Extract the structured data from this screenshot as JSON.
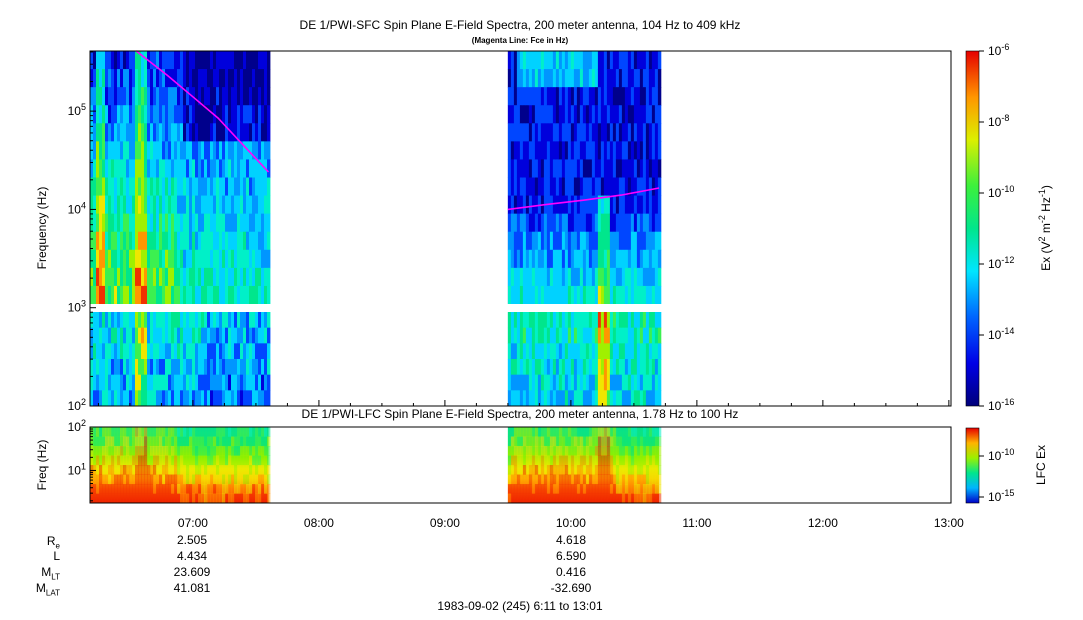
{
  "chart_data": [
    {
      "type": "heatmap",
      "title": "DE 1/PWI-SFC  Spin Plane E-Field Spectra, 200 meter antenna, 104 Hz to 409 kHz",
      "subtitle": "(Magenta Line: Fce in Hz)",
      "ylabel": "Frequency (Hz)",
      "y_scale": "log",
      "ylim": [
        100,
        409000
      ],
      "y_ticks": [
        {
          "value": 100,
          "base": "10",
          "exp": "2"
        },
        {
          "value": 1000,
          "base": "10",
          "exp": "3"
        },
        {
          "value": 10000,
          "base": "10",
          "exp": "4"
        },
        {
          "value": 100000,
          "base": "10",
          "exp": "5"
        }
      ],
      "xlim_hours": [
        6.183,
        13.017
      ],
      "data_intervals_hours": [
        [
          6.183,
          7.6
        ],
        [
          9.5,
          10.7
        ]
      ],
      "colorbar": {
        "label": "Ex (V² m⁻² Hz⁻¹)",
        "scale": "log",
        "range": [
          1e-16,
          1e-06
        ],
        "ticks": [
          {
            "value": 1e-06,
            "base": "10",
            "exp": "-6"
          },
          {
            "value": 1e-08,
            "base": "10",
            "exp": "-8"
          },
          {
            "value": 1e-10,
            "base": "10",
            "exp": "-10"
          },
          {
            "value": 1e-12,
            "base": "10",
            "exp": "-12"
          },
          {
            "value": 1e-14,
            "base": "10",
            "exp": "-14"
          },
          {
            "value": 1e-16,
            "base": "10",
            "exp": "-16"
          }
        ]
      },
      "overlay_fce": {
        "color": "#ff00ff",
        "segments": [
          {
            "t": [
              6.55,
              6.8,
              7.0,
              7.2,
              7.4,
              7.6
            ],
            "f": [
              409000,
              230000,
              140000,
              85000,
              45000,
              24000
            ]
          },
          {
            "t": [
              9.5,
              9.8,
              10.1,
              10.4,
              10.7
            ],
            "f": [
              10000,
              11200,
              12400,
              14000,
              16500
            ]
          }
        ]
      }
    },
    {
      "type": "heatmap",
      "title": "DE 1/PWI-LFC  Spin Plane E-Field Spectra, 200 meter antenna, 1.78 Hz to 100 Hz",
      "ylabel": "Freq (Hz)",
      "y_scale": "log",
      "ylim": [
        1.78,
        100
      ],
      "y_ticks": [
        {
          "value": 10,
          "base": "10",
          "exp": "1"
        },
        {
          "value": 100,
          "base": "10",
          "exp": "2"
        }
      ],
      "xlim_hours": [
        6.183,
        13.017
      ],
      "data_intervals_hours": [
        [
          6.183,
          7.6
        ],
        [
          9.5,
          10.7
        ]
      ],
      "colorbar": {
        "label": "LFC Ex",
        "scale": "log",
        "ticks": [
          {
            "value": 1e-10,
            "base": "10",
            "exp": "-10"
          },
          {
            "value": 1e-15,
            "base": "10",
            "exp": "-15"
          }
        ]
      }
    }
  ],
  "x_axis": {
    "ticks": [
      {
        "hour": 7,
        "label": "07:00"
      },
      {
        "hour": 8,
        "label": "08:00"
      },
      {
        "hour": 9,
        "label": "09:00"
      },
      {
        "hour": 10,
        "label": "10:00"
      },
      {
        "hour": 11,
        "label": "11:00"
      },
      {
        "hour": 12,
        "label": "12:00"
      },
      {
        "hour": 13,
        "label": "13:00"
      }
    ]
  },
  "orbit_table": {
    "labels": [
      {
        "main": "R",
        "sub": "e"
      },
      {
        "main": "L",
        "sub": ""
      },
      {
        "main": "M",
        "sub": "LT"
      },
      {
        "main": "M",
        "sub": "LAT"
      }
    ],
    "columns": [
      {
        "hour": 7,
        "values": [
          "2.505",
          "4.434",
          "23.609",
          "41.081"
        ]
      },
      {
        "hour": 10,
        "values": [
          "4.618",
          "6.590",
          "0.416",
          "-32.690"
        ]
      }
    ]
  },
  "footer": "1983-09-02 (245) 6:11 to 13:01"
}
